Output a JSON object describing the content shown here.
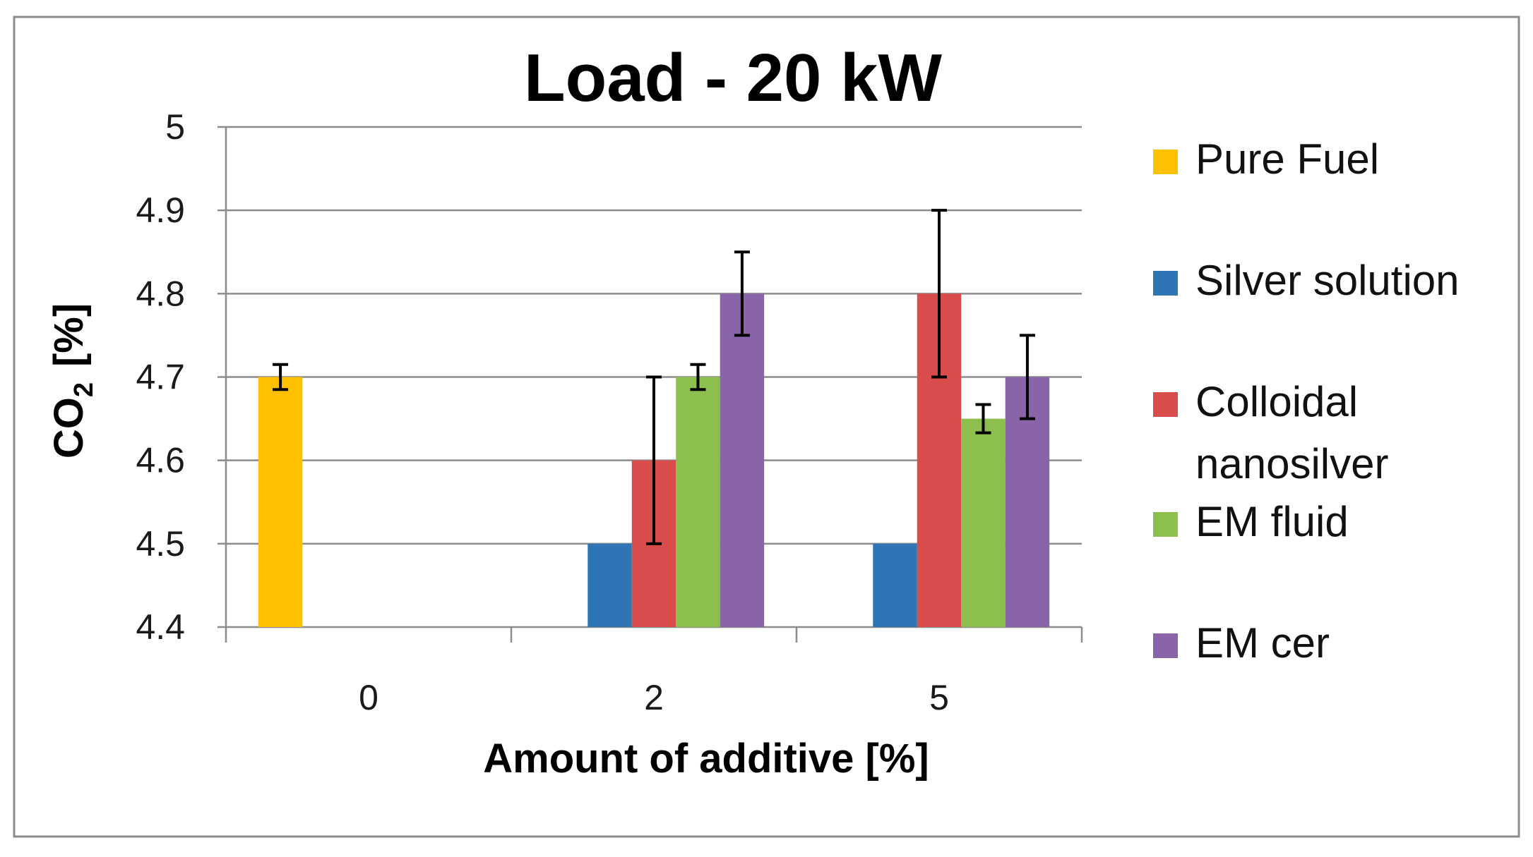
{
  "colors": {
    "Pure Fuel": "#ffc000",
    "Silver solution": "#2e75b6",
    "Colloidal nanosilver": "#d94c4c",
    "EM fluid": "#8cbf4e",
    "EM cer": "#8a64a8"
  },
  "chart_data": {
    "type": "bar",
    "title": "Load - 20 kW",
    "xlabel": "Amount of additive [%]",
    "ylabel_main": "CO",
    "ylabel_sub": "2",
    "ylabel_unit": "[%]",
    "ylim": [
      4.4,
      5.0
    ],
    "ytick_labels": [
      "4.4",
      "4.5",
      "4.6",
      "4.7",
      "4.8",
      "4.9",
      "5"
    ],
    "categories": [
      "0",
      "2",
      "5"
    ],
    "legend_position": "right",
    "grid": true,
    "series": [
      {
        "name": "Pure Fuel",
        "legend_lines": [
          "Pure Fuel"
        ],
        "values": [
          4.7,
          null,
          null
        ],
        "errors": [
          0.015,
          null,
          null
        ]
      },
      {
        "name": "Silver solution",
        "legend_lines": [
          "Silver solution"
        ],
        "values": [
          null,
          4.5,
          4.5
        ],
        "errors": [
          null,
          null,
          null
        ]
      },
      {
        "name": "Colloidal nanosilver",
        "legend_lines": [
          "Colloidal",
          "nanosilver"
        ],
        "values": [
          null,
          4.6,
          4.8
        ],
        "errors": [
          null,
          0.1,
          0.1
        ]
      },
      {
        "name": "EM fluid",
        "legend_lines": [
          "EM fluid"
        ],
        "values": [
          null,
          4.7,
          4.65
        ],
        "errors": [
          null,
          0.015,
          0.017
        ]
      },
      {
        "name": "EM cer",
        "legend_lines": [
          "EM cer"
        ],
        "values": [
          null,
          4.8,
          4.7
        ],
        "errors": [
          null,
          0.05,
          0.05
        ]
      }
    ]
  }
}
